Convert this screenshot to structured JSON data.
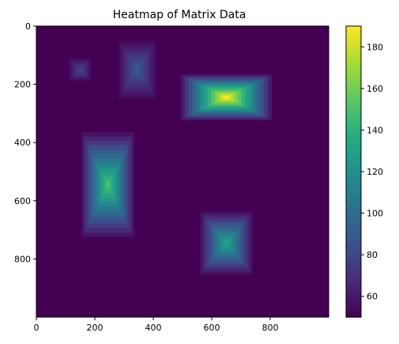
{
  "chart_data": {
    "type": "heatmap",
    "title": "Heatmap of Matrix Data",
    "xlabel": "",
    "ylabel": "",
    "xlim": [
      0,
      1000
    ],
    "ylim": [
      1000,
      0
    ],
    "x_ticks": [
      0,
      200,
      400,
      600,
      800
    ],
    "y_ticks": [
      0,
      200,
      400,
      600,
      800
    ],
    "colorbar": {
      "range": [
        50,
        190
      ],
      "ticks": [
        60,
        80,
        100,
        120,
        140,
        160,
        180
      ],
      "colormap": "viridis"
    },
    "background_value": 50,
    "grid": false,
    "blobs": [
      {
        "name": "blob-small-left",
        "center_x": 150,
        "center_y": 150,
        "half_width": 40,
        "half_height": 40,
        "peak": 80
      },
      {
        "name": "blob-tall-top",
        "center_x": 345,
        "center_y": 150,
        "half_width": 65,
        "half_height": 100,
        "peak": 90
      },
      {
        "name": "blob-wide-right",
        "center_x": 650,
        "center_y": 245,
        "half_width": 155,
        "half_height": 78,
        "peak": 188
      },
      {
        "name": "blob-tall-left",
        "center_x": 245,
        "center_y": 545,
        "half_width": 90,
        "half_height": 180,
        "peak": 148
      },
      {
        "name": "blob-square-bottom",
        "center_x": 650,
        "center_y": 745,
        "half_width": 90,
        "half_height": 108,
        "peak": 130
      }
    ]
  }
}
